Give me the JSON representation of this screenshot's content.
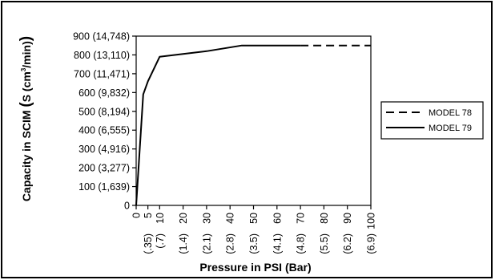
{
  "chart_data": {
    "type": "line",
    "title": "",
    "xlabel": "Pressure in PSI (Bar)",
    "ylabel": "Capacity in SCIM (S (cm³/min))",
    "ylabel_parts": {
      "main": "Capacity in SCIM ",
      "paren_open": "(",
      "s": "S",
      "inner": " (cm",
      "sup": "3",
      "inner_end": "/min)",
      "paren_close": ")"
    },
    "xlim": [
      0,
      100
    ],
    "ylim": [
      0,
      900
    ],
    "x_ticks": [
      {
        "value": 0,
        "label": "0",
        "sub": ""
      },
      {
        "value": 5,
        "label": "5",
        "sub": "(.35)"
      },
      {
        "value": 10,
        "label": "10",
        "sub": "(.7)"
      },
      {
        "value": 20,
        "label": "20",
        "sub": "(1.4)"
      },
      {
        "value": 30,
        "label": "30",
        "sub": "(2.1)"
      },
      {
        "value": 40,
        "label": "40",
        "sub": "(2.8)"
      },
      {
        "value": 50,
        "label": "50",
        "sub": "(3.5)"
      },
      {
        "value": 60,
        "label": "60",
        "sub": "(4.1)"
      },
      {
        "value": 70,
        "label": "70",
        "sub": "(4.8)"
      },
      {
        "value": 80,
        "label": "80",
        "sub": "(5.5)"
      },
      {
        "value": 90,
        "label": "90",
        "sub": "(6.2)"
      },
      {
        "value": 100,
        "label": "100",
        "sub": "(6.9)"
      }
    ],
    "y_ticks": [
      {
        "value": 0,
        "label": "0"
      },
      {
        "value": 100,
        "label": "100 (1,639)"
      },
      {
        "value": 200,
        "label": "200 (3,277)"
      },
      {
        "value": 300,
        "label": "300 (4,916)"
      },
      {
        "value": 400,
        "label": "400 (6,555)"
      },
      {
        "value": 500,
        "label": "500 (8,194)"
      },
      {
        "value": 600,
        "label": "600 (9,832)"
      },
      {
        "value": 700,
        "label": "700 (11,471)"
      },
      {
        "value": 800,
        "label": "800 (13,110)"
      },
      {
        "value": 900,
        "label": "900 (14,748)"
      }
    ],
    "series": [
      {
        "name": "MODEL 79",
        "style": "solid",
        "points": [
          [
            0,
            0
          ],
          [
            3,
            590
          ],
          [
            5,
            660
          ],
          [
            10,
            790
          ],
          [
            20,
            805
          ],
          [
            30,
            820
          ],
          [
            45,
            850
          ],
          [
            70,
            850
          ]
        ]
      },
      {
        "name": "MODEL 78",
        "style": "dashed",
        "points": [
          [
            70,
            850
          ],
          [
            100,
            850
          ]
        ]
      }
    ],
    "legend": {
      "placement": "right",
      "entries": [
        {
          "label": "MODEL 78",
          "style": "dashed"
        },
        {
          "label": "MODEL 79",
          "style": "solid"
        }
      ]
    },
    "grid": false,
    "colors": {
      "line": "#000000",
      "background": "#ffffff"
    }
  }
}
